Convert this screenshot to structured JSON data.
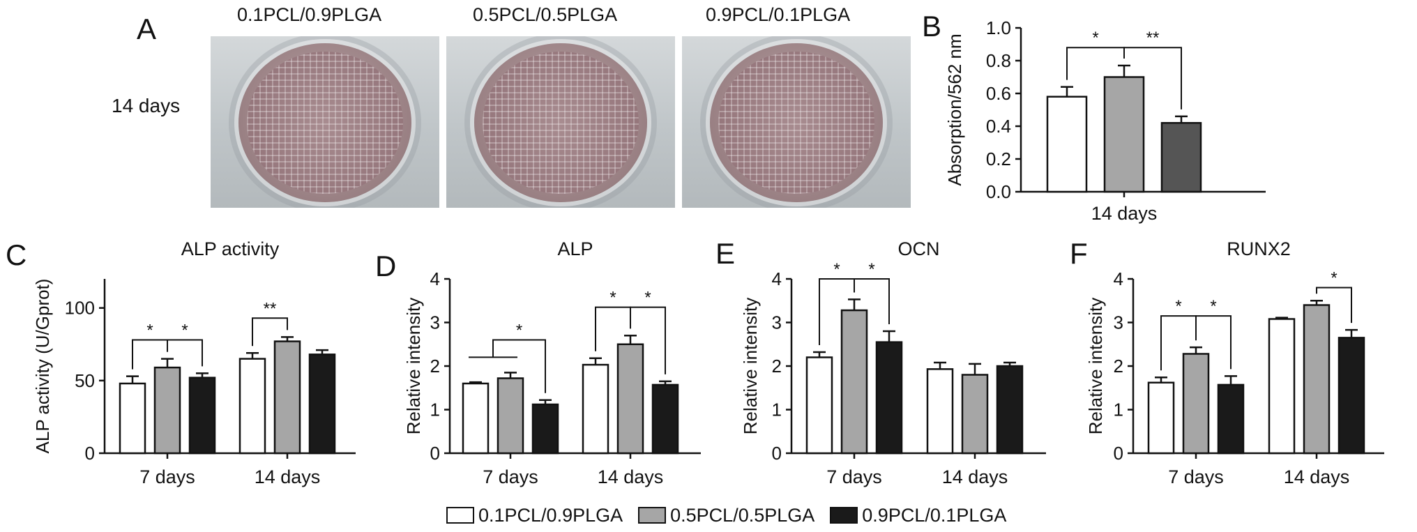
{
  "panel_letters": {
    "a": "A",
    "b": "B",
    "c": "C",
    "d": "D",
    "e": "E",
    "f": "F"
  },
  "panelA": {
    "row_label": "14 days",
    "photo_titles": [
      "0.1PCL/0.9PLGA",
      "0.5PCL/0.5PLGA",
      "0.9PCL/0.1PLGA"
    ]
  },
  "legend": {
    "items": [
      {
        "label": "0.1PCL/0.9PLGA",
        "color": "#ffffff"
      },
      {
        "label": "0.5PCL/0.5PLGA",
        "color": "#a6a6a6"
      },
      {
        "label": "0.9PCL/0.1PLGA",
        "color": "#1a1a1a"
      }
    ]
  },
  "chart_data": [
    {
      "panel": "B",
      "type": "bar",
      "title": "",
      "ylabel": "Absorption/562 nm",
      "xlabel": "",
      "ylim": [
        0,
        1.0
      ],
      "yticks": [
        "0.0",
        "0.2",
        "0.4",
        "0.6",
        "0.8",
        "1.0"
      ],
      "categories": [
        "14 days"
      ],
      "series": [
        {
          "name": "0.1PCL/0.9PLGA",
          "values": [
            0.58
          ],
          "errors": [
            0.06
          ],
          "color": "#ffffff"
        },
        {
          "name": "0.5PCL/0.5PLGA",
          "values": [
            0.7
          ],
          "errors": [
            0.07
          ],
          "color": "#a6a6a6"
        },
        {
          "name": "0.9PCL/0.1PLGA",
          "values": [
            0.42
          ],
          "errors": [
            0.04
          ],
          "color": "#555555"
        }
      ],
      "annotations": [
        {
          "text": "*",
          "from": [
            0,
            0
          ],
          "to": [
            0,
            1
          ],
          "y": 0.88
        },
        {
          "text": "**",
          "from": [
            0,
            1
          ],
          "to": [
            0,
            2
          ],
          "y": 0.88
        }
      ]
    },
    {
      "panel": "C",
      "type": "bar",
      "title": "ALP activity",
      "ylabel": "ALP activity (U/Gprot)",
      "xlabel": "",
      "ylim": [
        0,
        120
      ],
      "yticks": [
        "0",
        "50",
        "100"
      ],
      "categories": [
        "7 days",
        "14 days"
      ],
      "series": [
        {
          "name": "0.1PCL/0.9PLGA",
          "values": [
            48,
            65
          ],
          "errors": [
            5,
            4
          ],
          "color": "#ffffff"
        },
        {
          "name": "0.5PCL/0.5PLGA",
          "values": [
            59,
            77
          ],
          "errors": [
            6,
            3
          ],
          "color": "#a6a6a6"
        },
        {
          "name": "0.9PCL/0.1PLGA",
          "values": [
            52,
            68
          ],
          "errors": [
            3,
            3
          ],
          "color": "#1a1a1a"
        }
      ],
      "annotations": [
        {
          "text": "*",
          "from": [
            0,
            0
          ],
          "to": [
            0,
            1
          ],
          "y": 78
        },
        {
          "text": "*",
          "from": [
            0,
            1
          ],
          "to": [
            0,
            2
          ],
          "y": 78
        },
        {
          "text": "**",
          "from": [
            1,
            0
          ],
          "to": [
            1,
            1
          ],
          "y": 93
        }
      ]
    },
    {
      "panel": "D",
      "type": "bar",
      "title": "ALP",
      "ylabel": "Relative intensity",
      "xlabel": "",
      "ylim": [
        0,
        4
      ],
      "yticks": [
        "0",
        "1",
        "2",
        "3",
        "4"
      ],
      "categories": [
        "7 days",
        "14 days"
      ],
      "series": [
        {
          "name": "0.1PCL/0.9PLGA",
          "values": [
            1.6,
            2.03
          ],
          "errors": [
            0.03,
            0.15
          ],
          "color": "#ffffff"
        },
        {
          "name": "0.5PCL/0.5PLGA",
          "values": [
            1.72,
            2.5
          ],
          "errors": [
            0.13,
            0.2
          ],
          "color": "#a6a6a6"
        },
        {
          "name": "0.9PCL/0.1PLGA",
          "values": [
            1.12,
            1.57
          ],
          "errors": [
            0.1,
            0.08
          ],
          "color": "#1a1a1a"
        }
      ],
      "annotations": [
        {
          "text": "*",
          "from": [
            0,
            0
          ],
          "to": [
            0,
            2
          ],
          "y": 2.6,
          "group_left": [
            [
              0,
              0
            ],
            [
              0,
              1
            ]
          ]
        },
        {
          "text": "*",
          "from": [
            1,
            0
          ],
          "to": [
            1,
            1
          ],
          "y": 3.35
        },
        {
          "text": "*",
          "from": [
            1,
            1
          ],
          "to": [
            1,
            2
          ],
          "y": 3.35
        }
      ]
    },
    {
      "panel": "E",
      "type": "bar",
      "title": "OCN",
      "ylabel": "Relative intensity",
      "xlabel": "",
      "ylim": [
        0,
        4
      ],
      "yticks": [
        "0",
        "1",
        "2",
        "3",
        "4"
      ],
      "categories": [
        "7 days",
        "14 days"
      ],
      "series": [
        {
          "name": "0.1PCL/0.9PLGA",
          "values": [
            2.2,
            1.93
          ],
          "errors": [
            0.12,
            0.15
          ],
          "color": "#ffffff"
        },
        {
          "name": "0.5PCL/0.5PLGA",
          "values": [
            3.28,
            1.8
          ],
          "errors": [
            0.25,
            0.25
          ],
          "color": "#a6a6a6"
        },
        {
          "name": "0.9PCL/0.1PLGA",
          "values": [
            2.55,
            2.0
          ],
          "errors": [
            0.25,
            0.08
          ],
          "color": "#1a1a1a"
        }
      ],
      "annotations": [
        {
          "text": "*",
          "from": [
            0,
            0
          ],
          "to": [
            0,
            1
          ],
          "y": 4.0
        },
        {
          "text": "*",
          "from": [
            0,
            1
          ],
          "to": [
            0,
            2
          ],
          "y": 4.0
        }
      ]
    },
    {
      "panel": "F",
      "type": "bar",
      "title": "RUNX2",
      "ylabel": "Relative intensity",
      "xlabel": "",
      "ylim": [
        0,
        4
      ],
      "yticks": [
        "0",
        "1",
        "2",
        "3",
        "4"
      ],
      "categories": [
        "7 days",
        "14 days"
      ],
      "series": [
        {
          "name": "0.1PCL/0.9PLGA",
          "values": [
            1.62,
            3.08
          ],
          "errors": [
            0.12,
            0.03
          ],
          "color": "#ffffff"
        },
        {
          "name": "0.5PCL/0.5PLGA",
          "values": [
            2.28,
            3.4
          ],
          "errors": [
            0.15,
            0.1
          ],
          "color": "#a6a6a6"
        },
        {
          "name": "0.9PCL/0.1PLGA",
          "values": [
            1.57,
            2.65
          ],
          "errors": [
            0.2,
            0.18
          ],
          "color": "#1a1a1a"
        }
      ],
      "annotations": [
        {
          "text": "*",
          "from": [
            0,
            0
          ],
          "to": [
            0,
            1
          ],
          "y": 3.15
        },
        {
          "text": "*",
          "from": [
            0,
            1
          ],
          "to": [
            0,
            2
          ],
          "y": 3.15
        },
        {
          "text": "*",
          "from": [
            1,
            1
          ],
          "to": [
            1,
            2
          ],
          "y": 3.8
        }
      ]
    }
  ]
}
